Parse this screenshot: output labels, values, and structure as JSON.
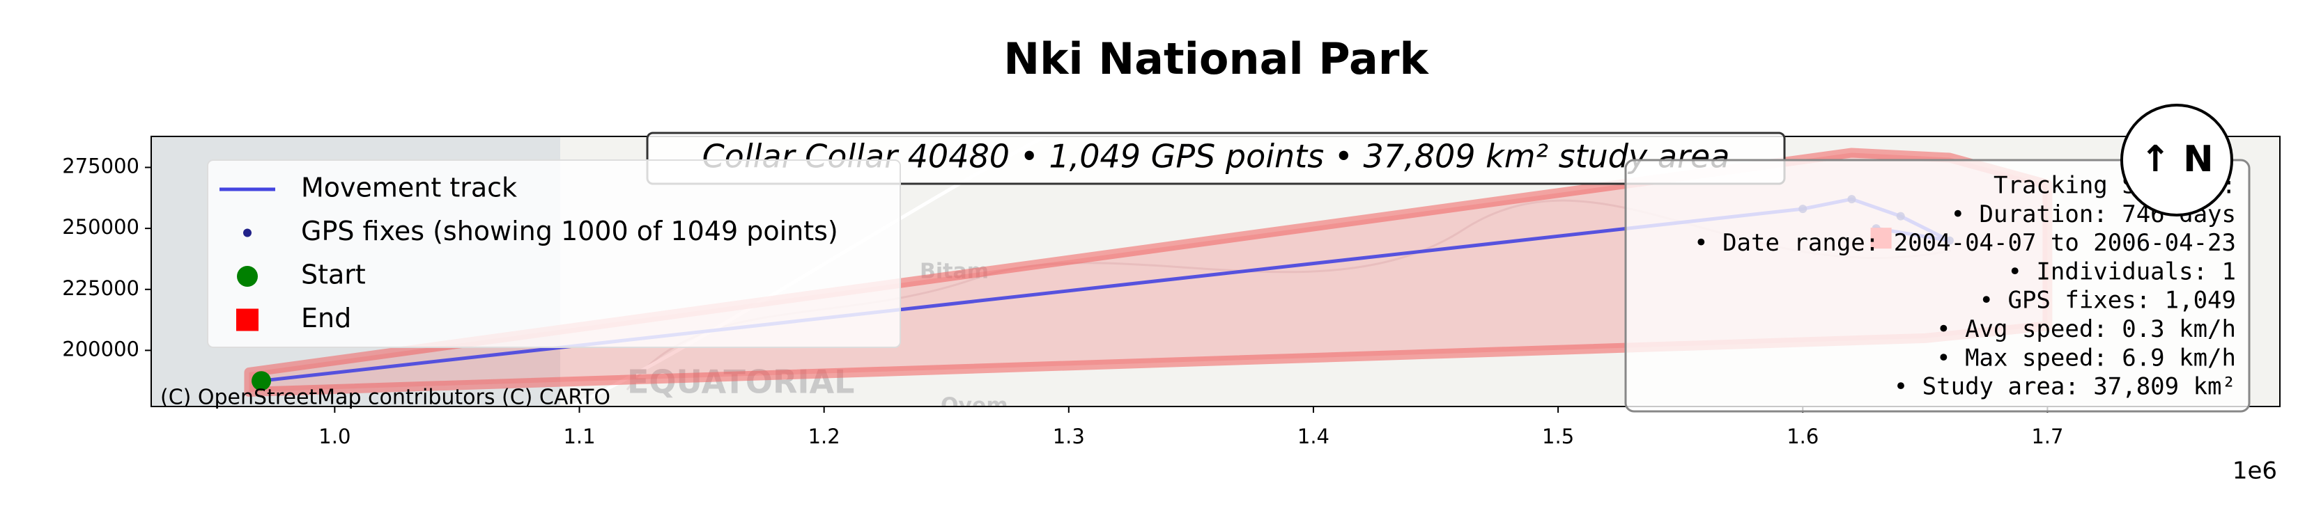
{
  "chart_data": {
    "type": "line",
    "title": "Nki National Park",
    "annotation": "Collar Collar 40480 • 1,049 GPS points • 37,809 km² study area",
    "xlim": [
      925000,
      1795000
    ],
    "ylim": [
      177000,
      287700
    ],
    "xticks": [
      {
        "value": 1000000,
        "label": "1.0"
      },
      {
        "value": 1100000,
        "label": "1.1"
      },
      {
        "value": 1200000,
        "label": "1.2"
      },
      {
        "value": 1300000,
        "label": "1.3"
      },
      {
        "value": 1400000,
        "label": "1.4"
      },
      {
        "value": 1500000,
        "label": "1.5"
      },
      {
        "value": 1600000,
        "label": "1.6"
      },
      {
        "value": 1700000,
        "label": "1.7"
      }
    ],
    "x_offset": "1e6",
    "yticks": [
      200000,
      225000,
      250000,
      275000
    ],
    "grid": false,
    "legend": "upper left",
    "study_area": {
      "color": "#f06060",
      "x": [
        965000,
        965000,
        1620000,
        1660000,
        1700000,
        1700000,
        1650000
      ],
      "y": [
        183000,
        191000,
        281000,
        279000,
        268000,
        210000,
        205000
      ]
    },
    "series": [
      {
        "name": "Movement track",
        "kind": "line",
        "color": "#4545e0",
        "x": [
          970000,
          1600000,
          1620000,
          1640000,
          1660000,
          1630000,
          1632000
        ],
        "values": [
          187500,
          258000,
          262000,
          255000,
          245000,
          250000,
          246000
        ]
      },
      {
        "name": "GPS fixes (showing 1000 of 1049 points)",
        "kind": "scatter",
        "color": "#22228a",
        "x": [
          970000,
          1600000,
          1620000,
          1640000,
          1660000,
          1630000,
          1632000
        ],
        "values": [
          187500,
          258000,
          262000,
          255000,
          245000,
          250000,
          246000
        ]
      },
      {
        "name": "Start",
        "kind": "circle",
        "color": "#008000",
        "x": [
          970000
        ],
        "values": [
          187500
        ]
      },
      {
        "name": "End",
        "kind": "square",
        "color": "#ff0000",
        "x": [
          1632000
        ],
        "values": [
          246000
        ]
      }
    ],
    "summary": [
      "Tracking Summary:",
      "• Duration: 746 days",
      "• Date range: 2004-04-07 to 2006-04-23",
      "• Individuals: 1",
      "• GPS fixes: 1,049",
      "• Avg speed: 0.3 km/h",
      "• Max speed: 6.9 km/h",
      "• Study area: 37,809 km²"
    ],
    "compass": "↑ N",
    "attribution": "(C) OpenStreetMap contributors (C) CARTO",
    "map_labels": [
      "Bitam",
      "EQUATORIAL",
      "Oyem"
    ]
  }
}
